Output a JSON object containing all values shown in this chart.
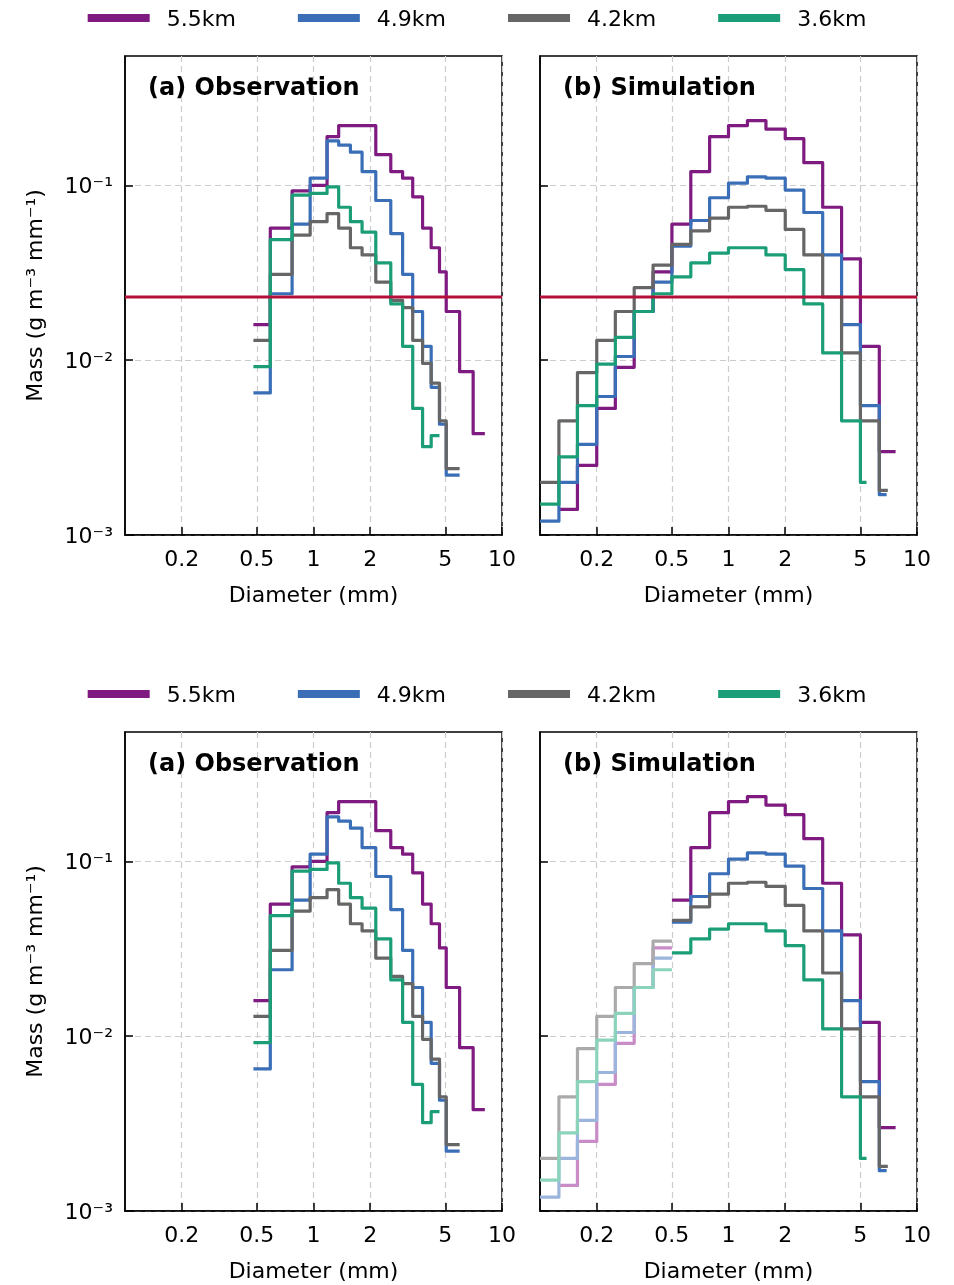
{
  "chart_data": [
    {
      "type": "step",
      "title": "(a) Observation",
      "xlabel": "Diameter (mm)",
      "ylabel": "Mass (g m⁻³ mm⁻¹)",
      "log": "xy",
      "xlim": [
        0.1,
        10
      ],
      "ylim": [
        0.001,
        0.55
      ],
      "xticks": [
        0.2,
        0.5,
        1,
        2,
        5,
        10
      ],
      "yticks": [
        {
          "value": 0.001,
          "label": "10⁻³"
        },
        {
          "value": 0.01,
          "label": "10⁻²"
        },
        {
          "value": 0.1,
          "label": "10⁻¹"
        }
      ],
      "grid": true,
      "legend": "top",
      "ref_lines": [
        {
          "axis": "y",
          "value": 0.023,
          "label": null,
          "color": "#b4103a"
        }
      ],
      "series": [
        {
          "name": "5.5km",
          "color": "#7e1a80",
          "x": [
            0.48,
            0.59,
            0.77,
            0.96,
            1.18,
            1.36,
            1.57,
            1.81,
            2.14,
            2.57,
            2.97,
            3.36,
            3.79,
            4.21,
            4.66,
            5.06,
            5.96,
            7.03,
            8.11
          ],
          "values": [
            0.016,
            0.057,
            0.093,
            0.1,
            0.19,
            0.22,
            0.22,
            0.22,
            0.15,
            0.12,
            0.11,
            0.086,
            0.057,
            0.044,
            0.032,
            0.019,
            0.0086,
            0.0038,
            0.0038
          ]
        },
        {
          "name": "4.9km",
          "color": "#3a6fb8",
          "x": [
            0.48,
            0.59,
            0.77,
            0.96,
            1.18,
            1.36,
            1.57,
            1.81,
            2.14,
            2.57,
            2.97,
            3.36,
            3.79,
            4.21,
            4.66,
            5.06,
            5.96
          ],
          "values": [
            0.0065,
            0.024,
            0.06,
            0.11,
            0.18,
            0.17,
            0.155,
            0.12,
            0.082,
            0.053,
            0.031,
            0.019,
            0.012,
            0.007,
            0.0043,
            0.0022,
            0.0022
          ]
        },
        {
          "name": "4.2km",
          "color": "#666666",
          "x": [
            0.48,
            0.59,
            0.77,
            0.96,
            1.18,
            1.36,
            1.57,
            1.81,
            2.14,
            2.57,
            2.97,
            3.36,
            3.79,
            4.21,
            4.66,
            5.06,
            5.96
          ],
          "values": [
            0.013,
            0.031,
            0.052,
            0.062,
            0.069,
            0.057,
            0.044,
            0.04,
            0.028,
            0.022,
            0.02,
            0.013,
            0.0096,
            0.0074,
            0.0045,
            0.0024,
            0.0024
          ]
        },
        {
          "name": "3.6km",
          "color": "#1b9e77",
          "x": [
            0.48,
            0.59,
            0.77,
            0.96,
            1.18,
            1.36,
            1.57,
            1.81,
            2.14,
            2.57,
            2.97,
            3.36,
            3.79,
            4.21,
            4.66
          ],
          "values": [
            0.0092,
            0.049,
            0.088,
            0.09,
            0.098,
            0.075,
            0.062,
            0.054,
            0.036,
            0.021,
            0.012,
            0.0053,
            0.0032,
            0.0037,
            0.0037
          ]
        }
      ]
    },
    {
      "type": "step",
      "title": "(b) Simulation",
      "xlabel": "Diameter (mm)",
      "log": "xy",
      "xlim": [
        0.1,
        10
      ],
      "ylim": [
        0.001,
        0.55
      ],
      "xticks": [
        0.2,
        0.5,
        1,
        2,
        5,
        10
      ],
      "yticks": [
        {
          "value": 0.001,
          "label": null
        },
        {
          "value": 0.01,
          "label": null
        },
        {
          "value": 0.1,
          "label": null
        }
      ],
      "grid": true,
      "tick_labels": "x",
      "ref_lines": [
        {
          "axis": "y",
          "value": 0.023,
          "label": null,
          "color": "#b4103a"
        }
      ],
      "series": [
        {
          "color": "#7e1a80",
          "x": [
            0.126,
            0.158,
            0.2,
            0.251,
            0.316,
            0.398,
            0.501,
            0.631,
            0.794,
            1,
            1.26,
            1.58,
            2,
            2.51,
            3.16,
            3.98,
            5.01,
            6.31,
            7.7
          ],
          "values": [
            0.0014,
            0.0025,
            0.0053,
            0.0091,
            0.019,
            0.032,
            0.06,
            0.12,
            0.19,
            0.22,
            0.235,
            0.21,
            0.185,
            0.135,
            0.075,
            0.038,
            0.012,
            0.003,
            0.003
          ]
        },
        {
          "color": "#3a6fb8",
          "x": [
            0.1,
            0.126,
            0.158,
            0.2,
            0.251,
            0.316,
            0.398,
            0.501,
            0.631,
            0.794,
            1,
            1.26,
            1.58,
            2,
            2.51,
            3.16,
            3.98,
            5.01,
            6.31,
            6.9
          ],
          "values": [
            0.0012,
            0.002,
            0.0033,
            0.0062,
            0.0105,
            0.019,
            0.028,
            0.045,
            0.063,
            0.085,
            0.103,
            0.112,
            0.11,
            0.094,
            0.07,
            0.04,
            0.016,
            0.0055,
            0.0017,
            0.0017
          ]
        },
        {
          "color": "#666666",
          "x": [
            0.1,
            0.126,
            0.158,
            0.2,
            0.251,
            0.316,
            0.398,
            0.501,
            0.631,
            0.794,
            1,
            1.26,
            1.58,
            2,
            2.51,
            3.16,
            3.98,
            5.01,
            6.31,
            7.0
          ],
          "values": [
            0.002,
            0.0045,
            0.0085,
            0.013,
            0.019,
            0.026,
            0.035,
            0.046,
            0.055,
            0.065,
            0.075,
            0.076,
            0.072,
            0.056,
            0.04,
            0.023,
            0.011,
            0.0045,
            0.0018,
            0.0018
          ]
        },
        {
          "color": "#1b9e77",
          "x": [
            0.1,
            0.126,
            0.158,
            0.2,
            0.251,
            0.316,
            0.398,
            0.501,
            0.631,
            0.794,
            1,
            1.26,
            1.58,
            2,
            2.51,
            3.16,
            3.98,
            5.01,
            5.4
          ],
          "values": [
            0.0015,
            0.0028,
            0.0055,
            0.0095,
            0.0135,
            0.019,
            0.024,
            0.03,
            0.036,
            0.041,
            0.044,
            0.044,
            0.04,
            0.033,
            0.021,
            0.011,
            0.0045,
            0.002,
            0.002
          ]
        }
      ]
    },
    {
      "type": "step",
      "title": "(a) Observation",
      "xlabel": "Diameter (mm)",
      "ylabel": "Mass (g m⁻³ mm⁻¹)",
      "log": "xy",
      "xlim": [
        0.1,
        10
      ],
      "ylim": [
        0.001,
        0.55
      ],
      "xticks": [
        0.2,
        0.5,
        1,
        2,
        5,
        10
      ],
      "yticks": [
        {
          "value": 0.001,
          "label": "10⁻³"
        },
        {
          "value": 0.01,
          "label": "10⁻²"
        },
        {
          "value": 0.1,
          "label": "10⁻¹"
        }
      ],
      "grid": true,
      "legend": "top",
      "series": [
        {
          "name": "5.5km",
          "color": "#7e1a80",
          "x": [
            0.48,
            0.59,
            0.77,
            0.96,
            1.18,
            1.36,
            1.57,
            1.81,
            2.14,
            2.57,
            2.97,
            3.36,
            3.79,
            4.21,
            4.66,
            5.06,
            5.96,
            7.03,
            8.11
          ],
          "values": [
            0.016,
            0.057,
            0.093,
            0.1,
            0.19,
            0.22,
            0.22,
            0.22,
            0.15,
            0.12,
            0.11,
            0.086,
            0.057,
            0.044,
            0.032,
            0.019,
            0.0086,
            0.0038,
            0.0038
          ]
        },
        {
          "name": "4.9km",
          "color": "#3a6fb8",
          "x": [
            0.48,
            0.59,
            0.77,
            0.96,
            1.18,
            1.36,
            1.57,
            1.81,
            2.14,
            2.57,
            2.97,
            3.36,
            3.79,
            4.21,
            4.66,
            5.06,
            5.96
          ],
          "values": [
            0.0065,
            0.024,
            0.06,
            0.11,
            0.18,
            0.17,
            0.155,
            0.12,
            0.082,
            0.053,
            0.031,
            0.019,
            0.012,
            0.007,
            0.0043,
            0.0022,
            0.0022
          ]
        },
        {
          "name": "4.2km",
          "color": "#666666",
          "x": [
            0.48,
            0.59,
            0.77,
            0.96,
            1.18,
            1.36,
            1.57,
            1.81,
            2.14,
            2.57,
            2.97,
            3.36,
            3.79,
            4.21,
            4.66,
            5.06,
            5.96
          ],
          "values": [
            0.013,
            0.031,
            0.052,
            0.062,
            0.069,
            0.057,
            0.044,
            0.04,
            0.028,
            0.022,
            0.02,
            0.013,
            0.0096,
            0.0074,
            0.0045,
            0.0024,
            0.0024
          ]
        },
        {
          "name": "3.6km",
          "color": "#1b9e77",
          "x": [
            0.48,
            0.59,
            0.77,
            0.96,
            1.18,
            1.36,
            1.57,
            1.81,
            2.14,
            2.57,
            2.97,
            3.36,
            3.79,
            4.21,
            4.66
          ],
          "values": [
            0.0092,
            0.049,
            0.088,
            0.09,
            0.098,
            0.075,
            0.062,
            0.054,
            0.036,
            0.021,
            0.012,
            0.0053,
            0.0032,
            0.0037,
            0.0037
          ]
        }
      ]
    },
    {
      "type": "step",
      "title": "(b) Simulation",
      "xlabel": "Diameter (mm)",
      "log": "xy",
      "xlim": [
        0.1,
        10
      ],
      "ylim": [
        0.001,
        0.55
      ],
      "xticks": [
        0.2,
        0.5,
        1,
        2,
        5,
        10
      ],
      "yticks": [
        {
          "value": 0.001,
          "label": null
        },
        {
          "value": 0.01,
          "label": null
        },
        {
          "value": 0.1,
          "label": null
        }
      ],
      "grid": true,
      "tick_labels": "x",
      "series": [
        {
          "color": "#c88cc6",
          "x": [
            0.126,
            0.158,
            0.2,
            0.251,
            0.316,
            0.398,
            0.501
          ],
          "values": [
            0.0014,
            0.0025,
            0.0053,
            0.0091,
            0.019,
            0.032,
            0.032
          ]
        },
        {
          "color": "#9bb5dc",
          "x": [
            0.1,
            0.126,
            0.158,
            0.2,
            0.251,
            0.316,
            0.398,
            0.501
          ],
          "values": [
            0.0012,
            0.002,
            0.0033,
            0.0062,
            0.0105,
            0.019,
            0.028,
            0.028
          ]
        },
        {
          "color": "#aaaaaa",
          "x": [
            0.1,
            0.126,
            0.158,
            0.2,
            0.251,
            0.316,
            0.398,
            0.501
          ],
          "values": [
            0.002,
            0.0045,
            0.0085,
            0.013,
            0.019,
            0.026,
            0.035,
            0.035
          ]
        },
        {
          "color": "#8cd3bb",
          "x": [
            0.1,
            0.126,
            0.158,
            0.2,
            0.251,
            0.316,
            0.398,
            0.501
          ],
          "values": [
            0.0015,
            0.0028,
            0.0055,
            0.0095,
            0.0135,
            0.019,
            0.024,
            0.024
          ]
        },
        {
          "color": "#7e1a80",
          "x": [
            0.501,
            0.631,
            0.794,
            1,
            1.26,
            1.58,
            2,
            2.51,
            3.16,
            3.98,
            5.01,
            6.31,
            7.7
          ],
          "values": [
            0.06,
            0.12,
            0.19,
            0.22,
            0.235,
            0.21,
            0.185,
            0.135,
            0.075,
            0.038,
            0.012,
            0.003,
            0.003
          ]
        },
        {
          "color": "#3a6fb8",
          "x": [
            0.501,
            0.631,
            0.794,
            1,
            1.26,
            1.58,
            2,
            2.51,
            3.16,
            3.98,
            5.01,
            6.31,
            6.9
          ],
          "values": [
            0.045,
            0.063,
            0.085,
            0.103,
            0.112,
            0.11,
            0.094,
            0.07,
            0.04,
            0.016,
            0.0055,
            0.0017,
            0.0017
          ]
        },
        {
          "color": "#666666",
          "x": [
            0.501,
            0.631,
            0.794,
            1,
            1.26,
            1.58,
            2,
            2.51,
            3.16,
            3.98,
            5.01,
            6.31,
            7.0
          ],
          "values": [
            0.046,
            0.055,
            0.065,
            0.075,
            0.076,
            0.072,
            0.056,
            0.04,
            0.023,
            0.011,
            0.0045,
            0.0018,
            0.0018
          ]
        },
        {
          "color": "#1b9e77",
          "x": [
            0.501,
            0.631,
            0.794,
            1,
            1.26,
            1.58,
            2,
            2.51,
            3.16,
            3.98,
            5.01,
            5.4
          ],
          "values": [
            0.03,
            0.036,
            0.041,
            0.044,
            0.044,
            0.04,
            0.033,
            0.021,
            0.011,
            0.0045,
            0.002,
            0.002
          ]
        }
      ]
    }
  ]
}
